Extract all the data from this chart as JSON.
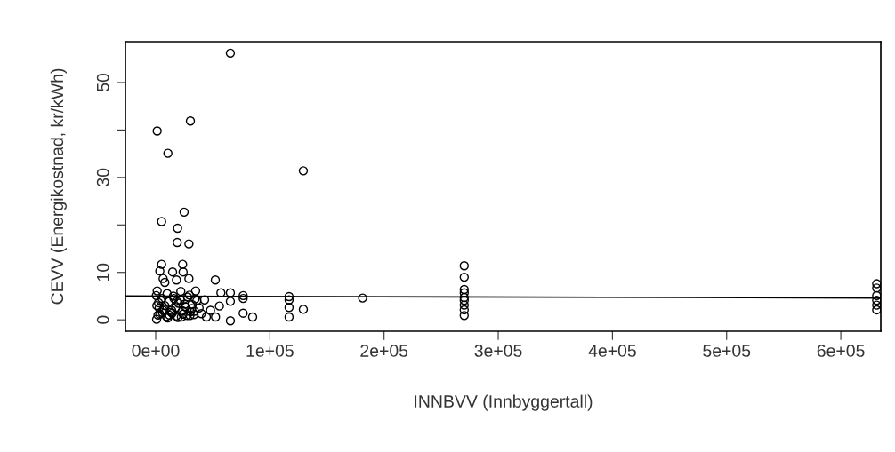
{
  "chart_data": {
    "type": "scatter",
    "xlabel": "INNBVV (Innbyggertall)",
    "ylabel": "CEVV (Energikostnad, kr/kWh)",
    "xlim": [
      -26500,
      635000
    ],
    "ylim": [
      -2.4,
      58.6
    ],
    "xticks": [
      {
        "value": 0,
        "label": "0e+00"
      },
      {
        "value": 100000,
        "label": "1e+05"
      },
      {
        "value": 200000,
        "label": "2e+05"
      },
      {
        "value": 300000,
        "label": "3e+05"
      },
      {
        "value": 400000,
        "label": "4e+05"
      },
      {
        "value": 500000,
        "label": "5e+05"
      },
      {
        "value": 600000,
        "label": "6e+05"
      }
    ],
    "yticks": [
      0,
      10,
      {
        "value": 20,
        "label": null
      },
      30,
      {
        "value": 40,
        "label": null
      },
      50
    ],
    "grid": false,
    "legend": false,
    "series": [
      {
        "marker": "circle",
        "color": "#000000",
        "x": [
          65400,
          30400,
          1300,
          10700,
          129300,
          24900,
          5200,
          19200,
          18900,
          29100,
          5200,
          23600,
          3600,
          14800,
          24000,
          6500,
          29100,
          52200,
          8000,
          18200,
          35000,
          57100,
          65400,
          76600,
          76600,
          116800,
          116800,
          116800,
          116800,
          129300,
          181200,
          84900,
          65400,
          44400,
          52400,
          76600,
          55800,
          48000,
          65400,
          42800,
          800,
          500,
          1300,
          270200,
          270200,
          270200,
          270200,
          270200,
          270200,
          270200,
          270200,
          270200,
          631400,
          631400,
          631400,
          631400,
          631400,
          631400,
          2000,
          3000,
          4500,
          6000,
          8000,
          10000,
          12000,
          14000,
          16000,
          18000,
          20000,
          22000,
          24000,
          26000,
          28000,
          30000,
          32000,
          34000,
          36000,
          38000,
          1000,
          3500,
          5500,
          7500,
          9500,
          11500,
          13500,
          15500,
          17500,
          19500,
          21500,
          23500,
          25500,
          27500,
          29500,
          31500,
          33500,
          2500,
          6500,
          10500,
          14500,
          18500,
          22500,
          26500,
          30500,
          34500,
          40000
        ],
        "values": [
          56.2,
          41.9,
          39.8,
          35.1,
          31.4,
          22.7,
          20.7,
          19.3,
          16.3,
          16.0,
          11.7,
          11.7,
          10.3,
          10.1,
          10.1,
          8.7,
          8.7,
          8.4,
          7.9,
          8.4,
          6.1,
          5.7,
          5.7,
          5.1,
          4.5,
          4.9,
          4.2,
          2.6,
          0.6,
          2.2,
          4.6,
          0.6,
          -0.2,
          0.6,
          0.6,
          1.4,
          2.9,
          2.0,
          3.9,
          4.2,
          0.1,
          5.1,
          6.1,
          11.4,
          9.0,
          6.4,
          5.7,
          4.7,
          4.1,
          3.1,
          2.1,
          0.9,
          7.6,
          6.7,
          5.1,
          4.1,
          3.1,
          2.1,
          1.0,
          2.5,
          4.0,
          1.5,
          3.0,
          5.5,
          1.0,
          2.0,
          4.5,
          0.8,
          3.5,
          6.0,
          1.2,
          2.8,
          4.8,
          0.9,
          3.2,
          1.8,
          4.0,
          2.5,
          3.0,
          1.2,
          4.5,
          2.2,
          0.7,
          3.8,
          1.6,
          5.0,
          2.6,
          0.5,
          4.2,
          1.9,
          3.3,
          0.9,
          5.2,
          2.4,
          1.1,
          3.6,
          2.0,
          0.4,
          1.4,
          3.9,
          0.6,
          2.7,
          1.7,
          4.4,
          1.3
        ]
      },
      {
        "type": "line",
        "color": "#000000",
        "x": [
          -26500,
          635000
        ],
        "values": [
          5.0,
          4.6
        ]
      }
    ]
  }
}
